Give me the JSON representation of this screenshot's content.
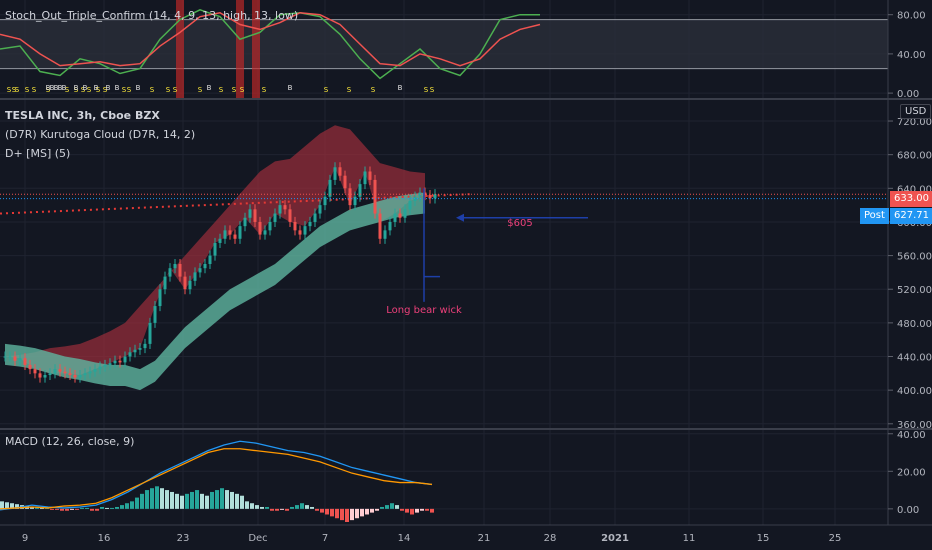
{
  "header": {
    "stoch_label": "Stoch_Out_Triple_Confirm (14, 4, 9, 13, high, 13, low)",
    "symbol_label": "TESLA INC, 3h, Cboe BZX",
    "cloud_label": "(D7R) Kurutoga Cloud (D7R, 14, 2)",
    "dplus_label": "D+ [MS] (5)",
    "macd_label": "MACD (12, 26, close, 9)",
    "currency": "USD"
  },
  "badges": {
    "last_price": "633.00",
    "post_label": "Post",
    "post_price": "627.71",
    "last_color": "#ef5350",
    "post_color": "#2196f3"
  },
  "colors": {
    "background": "#131722",
    "up": "#26a69a",
    "down": "#ef5350",
    "bull_cloud": "#5fb5a0",
    "bear_cloud": "#9b2d3a",
    "stoch_k": "#4caf50",
    "stoch_d": "#ef5350",
    "macd_line": "#2196f3",
    "signal_line": "#ff9800",
    "annotation": "#ec407a",
    "arrow": "#1e3fa8"
  },
  "chart_data": [
    {
      "type": "line",
      "name": "stochastic",
      "ylim": [
        -5,
        95
      ],
      "yticks": [
        0.0,
        40.0,
        80.0
      ],
      "band": [
        25,
        75
      ],
      "x_start": 0,
      "x_step": 20,
      "series": [
        {
          "name": "k",
          "values": [
            45,
            48,
            22,
            18,
            35,
            30,
            20,
            25,
            55,
            75,
            85,
            78,
            55,
            62,
            80,
            82,
            78,
            60,
            35,
            15,
            30,
            45,
            25,
            18,
            40,
            75,
            80,
            80
          ]
        },
        {
          "name": "d",
          "values": [
            60,
            55,
            40,
            28,
            30,
            32,
            28,
            30,
            48,
            62,
            78,
            82,
            70,
            65,
            72,
            82,
            80,
            70,
            50,
            30,
            28,
            40,
            35,
            28,
            35,
            55,
            65,
            70
          ]
        }
      ],
      "markers_s": [
        "9",
        "14",
        "17",
        "27",
        "34",
        "48",
        "67",
        "76",
        "83",
        "89",
        "98",
        "105",
        "124",
        "129",
        "152",
        "168",
        "175",
        "200",
        "221",
        "234",
        "242",
        "264",
        "326",
        "349",
        "373",
        "426",
        "432"
      ],
      "markers_b": [
        "48",
        "52",
        "56",
        "60",
        "64",
        "76",
        "85",
        "96",
        "108",
        "117",
        "138",
        "209",
        "290",
        "400"
      ],
      "marker_s": "S",
      "marker_b": "B",
      "x_highlight_bars": [
        176,
        180,
        236,
        240,
        252,
        256
      ]
    },
    {
      "type": "candlestick",
      "name": "price",
      "ylim": [
        355,
        745
      ],
      "yticks": [
        360.0,
        400.0,
        440.0,
        480.0,
        520.0,
        560.0,
        600.0,
        640.0,
        680.0,
        720.0
      ],
      "x_start": 5,
      "x_step": 5,
      "close": [
        440,
        440,
        435,
        438,
        430,
        425,
        420,
        415,
        418,
        420,
        425,
        422,
        420,
        418,
        415,
        418,
        420,
        422,
        425,
        428,
        430,
        432,
        435,
        433,
        440,
        445,
        448,
        450,
        455,
        480,
        500,
        520,
        535,
        545,
        550,
        535,
        520,
        530,
        540,
        545,
        550,
        560,
        575,
        580,
        590,
        585,
        580,
        595,
        605,
        615,
        600,
        585,
        590,
        600,
        610,
        620,
        615,
        600,
        590,
        585,
        595,
        600,
        610,
        620,
        630,
        650,
        665,
        655,
        640,
        620,
        630,
        645,
        660,
        650,
        610,
        580,
        590,
        600,
        610,
        605,
        615,
        625,
        630,
        635,
        632,
        628,
        633
      ],
      "cloud": {
        "upper": [
          440,
          442,
          445,
          450,
          452,
          455,
          462,
          470,
          480,
          500,
          520,
          540,
          560,
          580,
          600,
          620,
          640,
          660,
          672,
          675,
          690,
          705,
          715,
          710,
          690,
          670,
          665,
          660,
          658
        ],
        "lower": [
          430,
          428,
          425,
          420,
          415,
          412,
          408,
          405,
          405,
          400,
          410,
          430,
          450,
          465,
          480,
          495,
          505,
          515,
          525,
          540,
          555,
          570,
          580,
          590,
          595,
          600,
          605,
          608,
          610
        ],
        "x_start": 5,
        "x_step": 15
      },
      "dotted_trend_value": [
        610,
        623,
        633
      ],
      "annotations": [
        {
          "text": "$605",
          "price": 605
        },
        {
          "text": "Long bear wick",
          "price": 495
        }
      ]
    },
    {
      "type": "bar",
      "name": "macd",
      "ylim": [
        -7,
        42
      ],
      "yticks": [
        0.0,
        20.0,
        40.0
      ],
      "x_start": 0,
      "x_step": 5,
      "hist": [
        4,
        3.5,
        3,
        2.5,
        2,
        1.5,
        1,
        1,
        0.5,
        0.5,
        -0.5,
        -0.5,
        -1,
        -1,
        -0.5,
        -0.5,
        0.5,
        0.5,
        -1,
        -1,
        1,
        0.5,
        0.5,
        1,
        2,
        3,
        4,
        6,
        8,
        10,
        11,
        12,
        11,
        10,
        9,
        8,
        7,
        8,
        9,
        10,
        8,
        7,
        9,
        10,
        11,
        10,
        9,
        8,
        7,
        4,
        3,
        2,
        1,
        1,
        -1,
        -1,
        -0.5,
        -1,
        1,
        2,
        3,
        2,
        1,
        -1,
        -2,
        -3,
        -4,
        -5,
        -6,
        -7,
        -6,
        -5,
        -4,
        -3,
        -2,
        -1,
        1,
        2,
        3,
        2,
        -1,
        -2,
        -3,
        -2,
        -1,
        -1,
        -2
      ],
      "series": [
        {
          "name": "macd_line",
          "values": [
            -0.5,
            0.5,
            2,
            1,
            0.5,
            1,
            2,
            5,
            9,
            14,
            19,
            23,
            27,
            31,
            34,
            36,
            35,
            33,
            31,
            30,
            28,
            25,
            22,
            20,
            18,
            16,
            14,
            13
          ]
        },
        {
          "name": "signal_line",
          "values": [
            0,
            0.5,
            1,
            0.5,
            1.5,
            2,
            3,
            6,
            10,
            14,
            18,
            22,
            26,
            30,
            32,
            32,
            31,
            30,
            29,
            27,
            25,
            22,
            19,
            17,
            15,
            14,
            14,
            13
          ]
        }
      ],
      "line_x_start": 0,
      "line_x_step": 16
    }
  ],
  "x_axis": [
    "9",
    "16",
    "23",
    "Dec",
    "7",
    "14",
    "21",
    "28",
    "2021",
    "11",
    "15",
    "25"
  ]
}
